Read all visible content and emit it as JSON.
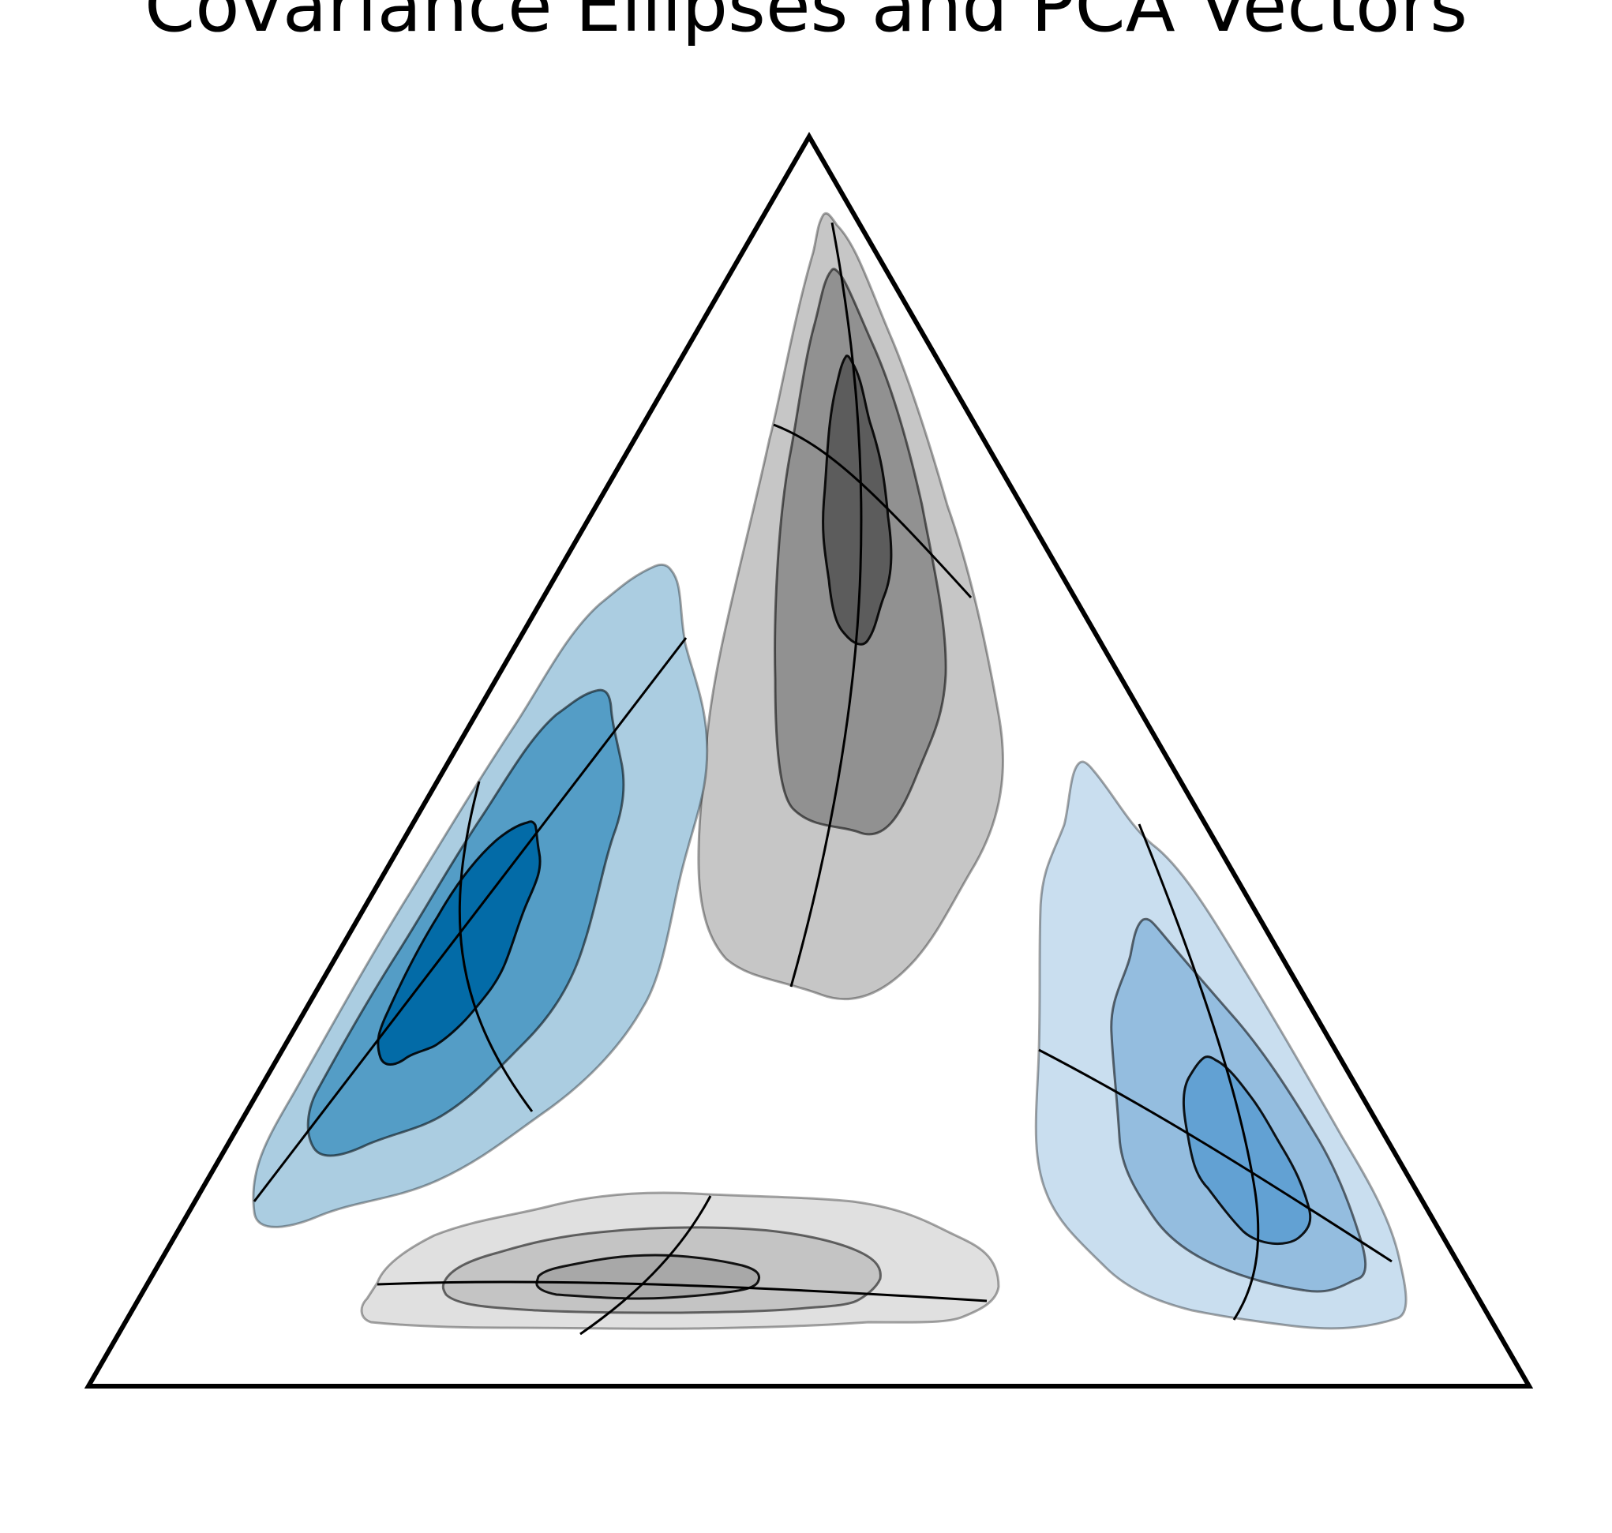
{
  "chart_data": {
    "type": "ternary",
    "title": "Covariance Ellipses and PCA Vectors",
    "grid": false,
    "legend": "none",
    "groups": [
      {
        "name": "",
        "color": "#999999",
        "center": [
          0.07,
          0.83,
          0.1
        ],
        "fill_colors": [
          "#c6c6c6",
          "#919191",
          "#5c5c5c"
        ]
      },
      {
        "name": "",
        "color": "#0570b0",
        "center": [
          0.73,
          0.22,
          0.05
        ],
        "fill_colors": [
          "#abcde1",
          "#549dc6",
          "#036ba7"
        ]
      },
      {
        "name": "",
        "color": "#c8c8c8",
        "center": [
          0.59,
          0.03,
          0.38
        ],
        "fill_colors": [
          "#e0e0e0",
          "#c4c4c4",
          "#a8a8a8"
        ]
      },
      {
        "name": "",
        "color": "#6ea6d4",
        "center": [
          0.1,
          0.21,
          0.69
        ],
        "fill_colors": [
          "#c9deef",
          "#94bddf",
          "#62a1d3"
        ]
      }
    ]
  }
}
